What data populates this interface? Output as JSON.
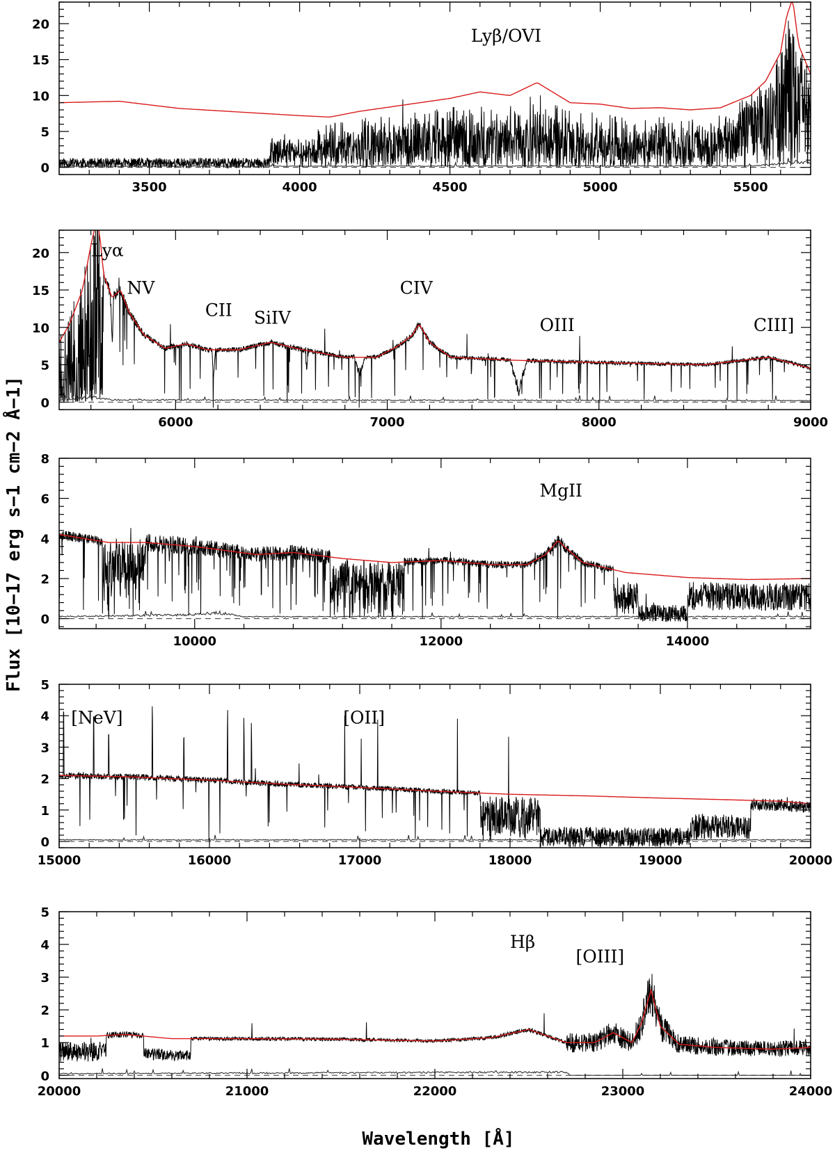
{
  "colors": {
    "spectrum": "#000000",
    "model": "#d91a1a",
    "error": "#222222",
    "frame": "#000000"
  },
  "figure": {
    "ylabel": "Flux [10−17 erg s−1 cm−2 Å−1]",
    "xlabel": "Wavelength [Å]"
  },
  "chart_data": [
    {
      "type": "line",
      "xlim": [
        3200,
        5700
      ],
      "ylim": [
        -1,
        23
      ],
      "xticks": [
        3500,
        4000,
        4500,
        5000,
        5500
      ],
      "yticks": [
        0,
        5,
        10,
        15,
        20
      ],
      "model": {
        "x": [
          3200,
          3400,
          3600,
          3800,
          4000,
          4100,
          4200,
          4300,
          4400,
          4500,
          4600,
          4700,
          4790,
          4900,
          5000,
          5100,
          5200,
          5300,
          5400,
          5500,
          5550,
          5600,
          5620,
          5640,
          5660,
          5700
        ],
        "y": [
          9.0,
          9.2,
          8.2,
          7.7,
          7.2,
          7.0,
          7.8,
          8.4,
          9.0,
          9.6,
          10.5,
          10.0,
          11.8,
          9.0,
          8.8,
          8.2,
          8.3,
          8.0,
          8.3,
          10.0,
          12.0,
          16.0,
          21.0,
          23.5,
          17.0,
          13.0
        ]
      },
      "spectrum": {
        "seed": 11,
        "segments": [
          {
            "x0": 3200,
            "x1": 3900,
            "base": 0.6,
            "noise": 0.7,
            "absfrac": 0.0
          },
          {
            "x0": 3900,
            "x1": 4060,
            "base": 2.8,
            "noise": 1.2,
            "absfrac": 0.5
          },
          {
            "x0": 4060,
            "x1": 5450,
            "base": 0.72,
            "noise": 0.15,
            "absfrac": 0.9,
            "follow": true
          },
          {
            "x0": 5450,
            "x1": 5700,
            "base": 0.85,
            "noise": 0.15,
            "absfrac": 0.7,
            "follow": true
          }
        ]
      },
      "error": {
        "x": [
          3200,
          5500,
          5600,
          5650,
          5700
        ],
        "y": [
          0.15,
          0.2,
          0.5,
          0.8,
          0.6
        ]
      },
      "labels": [
        {
          "text": "Lyβ/OVI",
          "x": 4570,
          "y": 17.5
        }
      ]
    },
    {
      "type": "line",
      "xlim": [
        5450,
        9000
      ],
      "ylim": [
        -1,
        23
      ],
      "xticks": [
        6000,
        7000,
        8000,
        9000
      ],
      "yticks": [
        0,
        5,
        10,
        15,
        20
      ],
      "model": {
        "x": [
          5450,
          5500,
          5560,
          5600,
          5620,
          5640,
          5660,
          5700,
          5740,
          5780,
          5850,
          5950,
          6050,
          6150,
          6300,
          6450,
          6600,
          6800,
          6950,
          7050,
          7120,
          7150,
          7200,
          7300,
          7600,
          8000,
          8500,
          8800,
          8900,
          9000
        ],
        "y": [
          8.0,
          10.5,
          15.0,
          21.0,
          23.5,
          23.0,
          17.0,
          14.0,
          15.0,
          12.0,
          9.0,
          7.2,
          7.8,
          7.0,
          7.0,
          8.0,
          7.0,
          6.0,
          6.0,
          7.5,
          9.0,
          10.5,
          8.0,
          6.0,
          5.6,
          5.3,
          5.0,
          6.0,
          5.3,
          4.5
        ]
      },
      "spectrum": {
        "seed": 23,
        "segments": [
          {
            "x0": 5450,
            "x1": 5660,
            "base": 0.6,
            "noise": 0.6,
            "absfrac": 0.6,
            "follow": true
          },
          {
            "x0": 5660,
            "x1": 9000,
            "base": 1.0,
            "noise": 0.05,
            "absfrac": 0.03,
            "follow": true
          }
        ]
      },
      "dips": [
        {
          "x": 6870,
          "w": 25,
          "d": 3.0
        },
        {
          "x": 7620,
          "w": 40,
          "d": 5.0
        },
        {
          "x": 5700,
          "w": 8,
          "d": 8.0
        },
        {
          "x": 6180,
          "w": 8,
          "d": 5.0
        },
        {
          "x": 6620,
          "w": 8,
          "d": 3.5
        }
      ],
      "error": {
        "x": [
          5450,
          5600,
          5700,
          9000
        ],
        "y": [
          0.2,
          0.7,
          0.3,
          0.2
        ]
      },
      "labels": [
        {
          "text": "Lyα",
          "x": 5600,
          "y": 19.5
        },
        {
          "text": "NV",
          "x": 5770,
          "y": 14.5
        },
        {
          "text": "CII",
          "x": 6140,
          "y": 11.5
        },
        {
          "text": "SiIV",
          "x": 6370,
          "y": 10.5
        },
        {
          "text": "CIV",
          "x": 7060,
          "y": 14.5
        },
        {
          "text": "OIII",
          "x": 7720,
          "y": 9.5
        },
        {
          "text": "CIII]",
          "x": 8730,
          "y": 9.5
        }
      ]
    },
    {
      "type": "line",
      "xlim": [
        8900,
        15000
      ],
      "ylim": [
        -0.5,
        8
      ],
      "xticks": [
        10000,
        12000,
        14000
      ],
      "yticks": [
        0,
        2,
        4,
        6,
        8
      ],
      "model": {
        "x": [
          8900,
          9300,
          9600,
          10000,
          10500,
          10800,
          11200,
          11600,
          12000,
          12400,
          12700,
          12850,
          12950,
          13000,
          13150,
          13500,
          14000,
          14500,
          15000
        ],
        "y": [
          4.2,
          3.8,
          3.8,
          3.6,
          3.2,
          3.3,
          3.0,
          2.8,
          2.9,
          2.7,
          2.7,
          3.2,
          3.9,
          3.6,
          2.8,
          2.3,
          2.05,
          1.95,
          2.0
        ]
      },
      "spectrum": {
        "seed": 37,
        "segments": [
          {
            "x0": 8900,
            "x1": 9250,
            "base": 1.0,
            "noise": 0.06,
            "absfrac": 0.05,
            "follow": true
          },
          {
            "x0": 9250,
            "x1": 9600,
            "base": 0.75,
            "noise": 0.3,
            "absfrac": 0.3,
            "follow": true
          },
          {
            "x0": 9600,
            "x1": 11100,
            "base": 1.0,
            "noise": 0.12,
            "absfrac": 0.08,
            "follow": true
          },
          {
            "x0": 11100,
            "x1": 11700,
            "base": 0.7,
            "noise": 0.3,
            "absfrac": 0.3,
            "follow": true
          },
          {
            "x0": 11700,
            "x1": 13400,
            "base": 1.0,
            "noise": 0.07,
            "absfrac": 0.05,
            "follow": true
          },
          {
            "x0": 13400,
            "x1": 13600,
            "base": 0.5,
            "noise": 0.3,
            "absfrac": 0.3,
            "follow": true
          },
          {
            "x0": 13600,
            "x1": 14000,
            "base": 0.12,
            "noise": 0.2,
            "absfrac": 0.0,
            "follow": true
          },
          {
            "x0": 14000,
            "x1": 15000,
            "base": 0.55,
            "noise": 0.35,
            "absfrac": 0.0,
            "follow": true
          }
        ]
      },
      "error": {
        "x": [
          8900,
          10000,
          10200,
          10400,
          15000
        ],
        "y": [
          0.1,
          0.2,
          0.3,
          0.1,
          0.1
        ]
      },
      "labels": [
        {
          "text": "MgII",
          "x": 12800,
          "y": 6.1
        }
      ]
    },
    {
      "type": "line",
      "xlim": [
        15000,
        20000
      ],
      "ylim": [
        -0.2,
        5
      ],
      "xticks": [
        15000,
        16000,
        17000,
        18000,
        19000,
        20000
      ],
      "yticks": [
        0,
        1,
        2,
        3,
        4,
        5
      ],
      "model": {
        "x": [
          15000,
          15500,
          16000,
          16500,
          17000,
          17500,
          18000,
          18500,
          19000,
          19500,
          19800,
          20000
        ],
        "y": [
          2.1,
          2.05,
          1.95,
          1.82,
          1.72,
          1.6,
          1.5,
          1.45,
          1.38,
          1.32,
          1.28,
          1.2
        ]
      },
      "spectrum": {
        "seed": 53,
        "segments": [
          {
            "x0": 15000,
            "x1": 17800,
            "base": 1.0,
            "noise": 0.05,
            "absfrac": 0.03,
            "follow": true
          },
          {
            "x0": 17800,
            "x1": 18200,
            "base": 0.55,
            "noise": 0.4,
            "absfrac": 0.1,
            "follow": true
          },
          {
            "x0": 18200,
            "x1": 19200,
            "base": 0.1,
            "noise": 0.22,
            "absfrac": 0.0,
            "follow": true
          },
          {
            "x0": 19200,
            "x1": 19600,
            "base": 0.35,
            "noise": 0.3,
            "absfrac": 0.0,
            "follow": true
          },
          {
            "x0": 19600,
            "x1": 20000,
            "base": 0.9,
            "noise": 0.15,
            "absfrac": 0.0,
            "follow": true
          }
        ]
      },
      "spikes": [
        15030,
        15230,
        15330,
        15620,
        15830,
        16120,
        16230,
        16280,
        16900,
        17010,
        17120,
        17650,
        17990
      ],
      "error": {
        "x": [
          15000,
          20000
        ],
        "y": [
          0.05,
          0.05
        ]
      },
      "labels": [
        {
          "text": "[NeV]",
          "x": 15080,
          "y": 3.75
        },
        {
          "text": "[OII]",
          "x": 16890,
          "y": 3.75
        }
      ]
    },
    {
      "type": "line",
      "xlim": [
        20000,
        24000
      ],
      "ylim": [
        -0.1,
        5
      ],
      "xticks": [
        20000,
        21000,
        22000,
        23000,
        24000
      ],
      "yticks": [
        0,
        1,
        2,
        3,
        4,
        5
      ],
      "model": {
        "x": [
          20000,
          20200,
          20350,
          20600,
          21000,
          21500,
          22000,
          22300,
          22500,
          22700,
          22850,
          22950,
          23050,
          23100,
          23150,
          23200,
          23300,
          23500,
          23800,
          24000
        ],
        "y": [
          1.2,
          1.2,
          1.25,
          1.12,
          1.12,
          1.1,
          1.05,
          1.15,
          1.4,
          1.0,
          1.0,
          1.3,
          1.0,
          1.6,
          2.6,
          1.5,
          0.95,
          0.85,
          0.8,
          0.85
        ]
      },
      "spectrum": {
        "seed": 71,
        "segments": [
          {
            "x0": 20000,
            "x1": 20250,
            "base": 0.6,
            "noise": 0.25,
            "absfrac": 0.0,
            "follow": true
          },
          {
            "x0": 20250,
            "x1": 20450,
            "base": 1.0,
            "noise": 0.08,
            "absfrac": 0.0,
            "follow": true
          },
          {
            "x0": 20450,
            "x1": 20700,
            "base": 0.55,
            "noise": 0.15,
            "absfrac": 0.0,
            "follow": true
          },
          {
            "x0": 20700,
            "x1": 22700,
            "base": 1.0,
            "noise": 0.05,
            "absfrac": 0.0,
            "follow": true
          },
          {
            "x0": 22700,
            "x1": 24000,
            "base": 1.0,
            "noise": 0.3,
            "absfrac": 0.0,
            "follow": true
          }
        ]
      },
      "error": {
        "x": [
          20000,
          22700,
          22720,
          24000
        ],
        "y": [
          0.05,
          0.1,
          0.0,
          0.0
        ]
      },
      "labels": [
        {
          "text": "Hβ",
          "x": 22400,
          "y": 3.9
        },
        {
          "text": "[OIII]",
          "x": 22750,
          "y": 3.45
        }
      ]
    }
  ]
}
